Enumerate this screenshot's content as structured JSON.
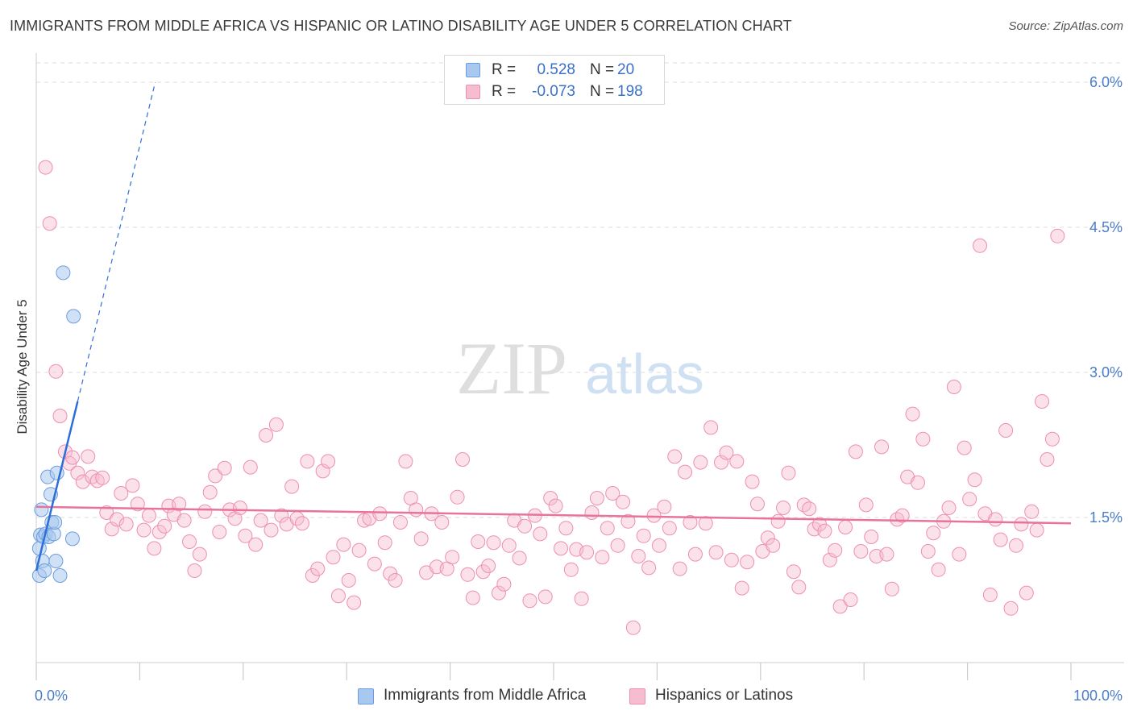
{
  "title": "IMMIGRANTS FROM MIDDLE AFRICA VS HISPANIC OR LATINO DISABILITY AGE UNDER 5 CORRELATION CHART",
  "source": "Source: ZipAtlas.com",
  "watermark": {
    "zip": "ZIP",
    "atlas": "atlas"
  },
  "legend": {
    "rows": [
      {
        "r_label": "R =",
        "r_value": "0.528",
        "n_label": "N =",
        "n_value": "20"
      },
      {
        "r_label": "R =",
        "r_value": "-0.073",
        "n_label": "N =",
        "n_value": "198"
      }
    ]
  },
  "bottom_legend": {
    "series1": "Immigrants from Middle Africa",
    "series2": "Hispanics or Latinos"
  },
  "colors": {
    "blue_fill": "#a9c8ef",
    "blue_stroke": "#6a9ee0",
    "blue_line": "#2d6fd6",
    "pink_fill": "#f6bcd0",
    "pink_stroke": "#ee8fb0",
    "pink_line": "#e8739c",
    "axis_label": "#4a7cc9",
    "grid": "#dddddd"
  },
  "chart_data": {
    "type": "scatter",
    "title": "IMMIGRANTS FROM MIDDLE AFRICA VS HISPANIC OR LATINO DISABILITY AGE UNDER 5 CORRELATION CHART",
    "xlabel": "",
    "ylabel": "Disability Age Under 5",
    "xlim": [
      0,
      100
    ],
    "ylim": [
      0.0,
      6.2
    ],
    "x_tick_labels": [
      "0.0%",
      "100.0%"
    ],
    "y_ticks": [
      1.5,
      3.0,
      4.5,
      6.0
    ],
    "y_tick_labels": [
      "1.5%",
      "3.0%",
      "4.5%",
      "6.0%"
    ],
    "series": [
      {
        "name": "Immigrants from Middle Africa",
        "r": 0.528,
        "n": 20,
        "trend": {
          "x0": 0.0,
          "y0": 0.95,
          "x1": 4.0,
          "y1": 2.7,
          "dash_to_x": 11.5,
          "dash_to_y": 6.0
        },
        "points": [
          [
            0.3,
            0.9
          ],
          [
            0.3,
            1.18
          ],
          [
            0.4,
            1.32
          ],
          [
            0.5,
            1.58
          ],
          [
            0.6,
            1.05
          ],
          [
            0.7,
            1.3
          ],
          [
            0.8,
            0.95
          ],
          [
            0.9,
            1.33
          ],
          [
            1.1,
            1.92
          ],
          [
            1.2,
            1.3
          ],
          [
            1.4,
            1.74
          ],
          [
            1.5,
            1.45
          ],
          [
            1.7,
            1.33
          ],
          [
            1.8,
            1.45
          ],
          [
            1.9,
            1.05
          ],
          [
            2.0,
            1.96
          ],
          [
            2.3,
            0.9
          ],
          [
            2.6,
            4.03
          ],
          [
            3.5,
            1.28
          ],
          [
            3.6,
            3.58
          ]
        ]
      },
      {
        "name": "Hispanics or Latinos",
        "r": -0.073,
        "n": 198,
        "trend": {
          "x0": 0.0,
          "y0": 1.61,
          "x1": 100.0,
          "y1": 1.44
        },
        "points": [
          [
            0.9,
            5.12
          ],
          [
            1.3,
            4.54
          ],
          [
            1.9,
            3.01
          ],
          [
            2.3,
            2.55
          ],
          [
            2.8,
            2.18
          ],
          [
            3.2,
            2.06
          ],
          [
            3.5,
            2.12
          ],
          [
            4.0,
            1.96
          ],
          [
            4.5,
            1.87
          ],
          [
            5.0,
            2.13
          ],
          [
            5.4,
            1.92
          ],
          [
            5.9,
            1.88
          ],
          [
            6.4,
            1.91
          ],
          [
            6.8,
            1.55
          ],
          [
            7.3,
            1.38
          ],
          [
            7.8,
            1.48
          ],
          [
            8.2,
            1.75
          ],
          [
            8.7,
            1.43
          ],
          [
            9.3,
            1.83
          ],
          [
            9.8,
            1.64
          ],
          [
            10.4,
            1.37
          ],
          [
            10.9,
            1.52
          ],
          [
            11.4,
            1.18
          ],
          [
            11.9,
            1.35
          ],
          [
            12.4,
            1.41
          ],
          [
            12.8,
            1.62
          ],
          [
            13.3,
            1.53
          ],
          [
            13.8,
            1.64
          ],
          [
            14.3,
            1.47
          ],
          [
            14.8,
            1.25
          ],
          [
            15.3,
            0.95
          ],
          [
            15.8,
            1.12
          ],
          [
            16.3,
            1.56
          ],
          [
            16.8,
            1.76
          ],
          [
            17.3,
            1.93
          ],
          [
            17.7,
            1.35
          ],
          [
            18.2,
            2.01
          ],
          [
            18.7,
            1.58
          ],
          [
            19.2,
            1.49
          ],
          [
            19.7,
            1.6
          ],
          [
            20.2,
            1.31
          ],
          [
            20.7,
            2.02
          ],
          [
            21.2,
            1.22
          ],
          [
            21.7,
            1.47
          ],
          [
            22.2,
            2.35
          ],
          [
            22.7,
            1.37
          ],
          [
            23.2,
            2.46
          ],
          [
            23.7,
            1.52
          ],
          [
            24.2,
            1.43
          ],
          [
            24.7,
            1.82
          ],
          [
            25.2,
            1.49
          ],
          [
            25.7,
            1.44
          ],
          [
            26.2,
            2.08
          ],
          [
            26.7,
            0.9
          ],
          [
            27.2,
            0.97
          ],
          [
            27.7,
            1.98
          ],
          [
            28.2,
            2.08
          ],
          [
            28.7,
            1.09
          ],
          [
            29.2,
            0.69
          ],
          [
            29.7,
            1.22
          ],
          [
            30.2,
            0.85
          ],
          [
            30.7,
            0.62
          ],
          [
            31.2,
            1.16
          ],
          [
            31.7,
            1.47
          ],
          [
            32.2,
            1.49
          ],
          [
            32.7,
            1.02
          ],
          [
            33.2,
            1.54
          ],
          [
            33.7,
            1.24
          ],
          [
            34.2,
            0.92
          ],
          [
            34.7,
            0.85
          ],
          [
            35.2,
            1.45
          ],
          [
            35.7,
            2.08
          ],
          [
            36.2,
            1.7
          ],
          [
            36.7,
            1.58
          ],
          [
            37.2,
            1.28
          ],
          [
            37.7,
            0.93
          ],
          [
            38.2,
            1.54
          ],
          [
            38.7,
            0.99
          ],
          [
            39.2,
            1.45
          ],
          [
            39.7,
            0.97
          ],
          [
            40.2,
            1.09
          ],
          [
            40.7,
            1.71
          ],
          [
            41.2,
            2.1
          ],
          [
            41.7,
            0.91
          ],
          [
            42.2,
            0.67
          ],
          [
            42.7,
            1.25
          ],
          [
            43.2,
            0.94
          ],
          [
            43.7,
            1.0
          ],
          [
            44.2,
            1.24
          ],
          [
            44.7,
            0.72
          ],
          [
            45.2,
            0.81
          ],
          [
            45.7,
            1.21
          ],
          [
            46.2,
            1.47
          ],
          [
            46.7,
            1.08
          ],
          [
            47.2,
            1.41
          ],
          [
            47.7,
            0.64
          ],
          [
            48.2,
            1.52
          ],
          [
            48.7,
            1.33
          ],
          [
            49.2,
            0.68
          ],
          [
            49.7,
            1.7
          ],
          [
            50.2,
            1.62
          ],
          [
            50.7,
            1.18
          ],
          [
            51.2,
            1.39
          ],
          [
            51.7,
            0.96
          ],
          [
            52.2,
            1.17
          ],
          [
            52.7,
            0.66
          ],
          [
            53.2,
            1.14
          ],
          [
            53.7,
            1.55
          ],
          [
            54.2,
            1.7
          ],
          [
            54.7,
            1.09
          ],
          [
            55.2,
            1.39
          ],
          [
            55.7,
            1.75
          ],
          [
            56.2,
            1.21
          ],
          [
            56.7,
            1.66
          ],
          [
            57.2,
            1.46
          ],
          [
            57.7,
            0.36
          ],
          [
            58.2,
            1.1
          ],
          [
            58.7,
            1.31
          ],
          [
            59.2,
            0.98
          ],
          [
            59.7,
            1.52
          ],
          [
            60.2,
            1.21
          ],
          [
            60.7,
            1.61
          ],
          [
            61.2,
            1.39
          ],
          [
            61.7,
            2.13
          ],
          [
            62.2,
            0.97
          ],
          [
            62.7,
            1.97
          ],
          [
            63.2,
            1.45
          ],
          [
            63.7,
            1.12
          ],
          [
            64.2,
            2.07
          ],
          [
            64.7,
            1.44
          ],
          [
            65.2,
            2.43
          ],
          [
            65.7,
            1.14
          ],
          [
            66.2,
            2.07
          ],
          [
            66.7,
            2.17
          ],
          [
            67.2,
            1.06
          ],
          [
            67.7,
            2.08
          ],
          [
            68.2,
            0.77
          ],
          [
            68.7,
            1.04
          ],
          [
            69.2,
            1.87
          ],
          [
            69.7,
            1.64
          ],
          [
            70.2,
            1.15
          ],
          [
            70.7,
            1.29
          ],
          [
            71.2,
            1.21
          ],
          [
            71.7,
            1.46
          ],
          [
            72.2,
            1.6
          ],
          [
            72.7,
            1.96
          ],
          [
            73.2,
            0.94
          ],
          [
            73.7,
            0.78
          ],
          [
            74.2,
            1.63
          ],
          [
            74.7,
            1.59
          ],
          [
            75.2,
            1.38
          ],
          [
            75.7,
            1.43
          ],
          [
            76.2,
            1.36
          ],
          [
            76.7,
            1.06
          ],
          [
            77.2,
            1.16
          ],
          [
            77.7,
            0.58
          ],
          [
            78.2,
            1.4
          ],
          [
            78.7,
            0.65
          ],
          [
            79.2,
            2.18
          ],
          [
            79.7,
            1.15
          ],
          [
            80.2,
            1.63
          ],
          [
            80.7,
            1.3
          ],
          [
            81.2,
            1.1
          ],
          [
            81.7,
            2.23
          ],
          [
            82.2,
            1.12
          ],
          [
            82.7,
            0.76
          ],
          [
            83.2,
            1.48
          ],
          [
            83.7,
            1.52
          ],
          [
            84.2,
            1.92
          ],
          [
            84.7,
            2.57
          ],
          [
            85.2,
            1.86
          ],
          [
            85.7,
            2.31
          ],
          [
            86.2,
            1.15
          ],
          [
            86.7,
            1.34
          ],
          [
            87.2,
            0.96
          ],
          [
            87.7,
            1.46
          ],
          [
            88.2,
            1.6
          ],
          [
            88.7,
            2.85
          ],
          [
            89.2,
            1.12
          ],
          [
            89.7,
            2.22
          ],
          [
            90.2,
            1.69
          ],
          [
            90.7,
            1.89
          ],
          [
            91.2,
            4.31
          ],
          [
            91.7,
            1.54
          ],
          [
            92.2,
            0.7
          ],
          [
            92.7,
            1.48
          ],
          [
            93.2,
            1.27
          ],
          [
            93.7,
            2.4
          ],
          [
            94.2,
            0.56
          ],
          [
            94.7,
            1.21
          ],
          [
            95.2,
            1.43
          ],
          [
            95.7,
            0.72
          ],
          [
            96.2,
            1.56
          ],
          [
            96.7,
            1.37
          ],
          [
            97.2,
            2.7
          ],
          [
            97.7,
            2.1
          ],
          [
            98.2,
            2.31
          ],
          [
            98.7,
            4.41
          ]
        ]
      }
    ]
  }
}
